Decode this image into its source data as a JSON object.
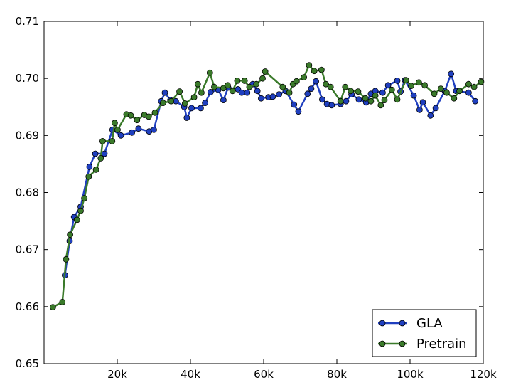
{
  "chart_data": {
    "type": "line",
    "title": "",
    "xlabel": "",
    "ylabel": "",
    "xlim": [
      0,
      120000
    ],
    "ylim": [
      0.65,
      0.71
    ],
    "x_ticks": [
      20000,
      40000,
      60000,
      80000,
      100000,
      120000
    ],
    "x_tick_labels": [
      "20k",
      "40k",
      "60k",
      "80k",
      "100k",
      "120k"
    ],
    "y_ticks": [
      0.65,
      0.66,
      0.67,
      0.68,
      0.69,
      0.7,
      0.71
    ],
    "y_tick_labels": [
      "0.65",
      "0.66",
      "0.67",
      "0.68",
      "0.69",
      "0.70",
      "0.71"
    ],
    "grid": false,
    "legend_position": "bottom-right",
    "series": [
      {
        "name": "GLA",
        "color": "#1f3fbf",
        "points": [
          [
            5700,
            0.6655
          ],
          [
            7000,
            0.6715
          ],
          [
            8200,
            0.6757
          ],
          [
            10000,
            0.6775
          ],
          [
            12400,
            0.6845
          ],
          [
            14000,
            0.6868
          ],
          [
            16500,
            0.6868
          ],
          [
            18700,
            0.691
          ],
          [
            21000,
            0.69
          ],
          [
            24000,
            0.6905
          ],
          [
            25800,
            0.6912
          ],
          [
            28700,
            0.6907
          ],
          [
            30000,
            0.691
          ],
          [
            32000,
            0.696
          ],
          [
            33000,
            0.6975
          ],
          [
            34500,
            0.6962
          ],
          [
            36000,
            0.696
          ],
          [
            38300,
            0.695
          ],
          [
            39000,
            0.6931
          ],
          [
            40300,
            0.6948
          ],
          [
            42800,
            0.6948
          ],
          [
            44000,
            0.6957
          ],
          [
            45500,
            0.6976
          ],
          [
            47600,
            0.698
          ],
          [
            49000,
            0.6962
          ],
          [
            50300,
            0.6984
          ],
          [
            53000,
            0.6981
          ],
          [
            54000,
            0.6975
          ],
          [
            55500,
            0.6975
          ],
          [
            57000,
            0.699
          ],
          [
            58300,
            0.6978
          ],
          [
            59300,
            0.6965
          ],
          [
            61300,
            0.6967
          ],
          [
            62500,
            0.6968
          ],
          [
            64200,
            0.6972
          ],
          [
            66000,
            0.6978
          ],
          [
            68300,
            0.6954
          ],
          [
            69500,
            0.6942
          ],
          [
            72000,
            0.6973
          ],
          [
            73000,
            0.6982
          ],
          [
            74300,
            0.6995
          ],
          [
            76000,
            0.6963
          ],
          [
            77300,
            0.6955
          ],
          [
            78600,
            0.6953
          ],
          [
            81000,
            0.6955
          ],
          [
            82500,
            0.696
          ],
          [
            84000,
            0.6972
          ],
          [
            86000,
            0.6963
          ],
          [
            88000,
            0.6958
          ],
          [
            89300,
            0.6973
          ],
          [
            90500,
            0.6978
          ],
          [
            92500,
            0.6975
          ],
          [
            94000,
            0.6988
          ],
          [
            96500,
            0.6996
          ],
          [
            97400,
            0.6977
          ],
          [
            98600,
            0.6997
          ],
          [
            101000,
            0.697
          ],
          [
            102600,
            0.6945
          ],
          [
            103500,
            0.6958
          ],
          [
            105600,
            0.6935
          ],
          [
            107000,
            0.6948
          ],
          [
            109500,
            0.6978
          ],
          [
            111200,
            0.7008
          ],
          [
            112600,
            0.6978
          ],
          [
            116000,
            0.6975
          ],
          [
            117800,
            0.696
          ]
        ]
      },
      {
        "name": "Pretrain",
        "color": "#3a7a2a",
        "points": [
          [
            2400,
            0.6599
          ],
          [
            5000,
            0.6608
          ],
          [
            6000,
            0.6683
          ],
          [
            7100,
            0.6726
          ],
          [
            9000,
            0.6752
          ],
          [
            10000,
            0.6768
          ],
          [
            11000,
            0.679
          ],
          [
            12200,
            0.6828
          ],
          [
            14200,
            0.684
          ],
          [
            15500,
            0.686
          ],
          [
            16000,
            0.689
          ],
          [
            18600,
            0.689
          ],
          [
            19300,
            0.6922
          ],
          [
            20100,
            0.691
          ],
          [
            22500,
            0.6937
          ],
          [
            23700,
            0.6935
          ],
          [
            25400,
            0.6927
          ],
          [
            27400,
            0.6936
          ],
          [
            28600,
            0.6933
          ],
          [
            30300,
            0.694
          ],
          [
            32500,
            0.6957
          ],
          [
            34700,
            0.696
          ],
          [
            37000,
            0.6977
          ],
          [
            38500,
            0.6956
          ],
          [
            41000,
            0.6967
          ],
          [
            42000,
            0.699
          ],
          [
            43000,
            0.6975
          ],
          [
            45300,
            0.701
          ],
          [
            46500,
            0.6985
          ],
          [
            49000,
            0.6983
          ],
          [
            50200,
            0.6988
          ],
          [
            51500,
            0.6978
          ],
          [
            52800,
            0.6996
          ],
          [
            54800,
            0.6996
          ],
          [
            56100,
            0.6985
          ],
          [
            58000,
            0.699
          ],
          [
            59700,
            0.7
          ],
          [
            60400,
            0.7012
          ],
          [
            65200,
            0.6985
          ],
          [
            67000,
            0.6975
          ],
          [
            68000,
            0.699
          ],
          [
            69000,
            0.6995
          ],
          [
            71000,
            0.7002
          ],
          [
            72400,
            0.7023
          ],
          [
            73800,
            0.7013
          ],
          [
            75800,
            0.7015
          ],
          [
            77000,
            0.699
          ],
          [
            78300,
            0.6985
          ],
          [
            81000,
            0.696
          ],
          [
            82300,
            0.6985
          ],
          [
            83800,
            0.6978
          ],
          [
            85800,
            0.6977
          ],
          [
            87800,
            0.6965
          ],
          [
            89300,
            0.696
          ],
          [
            90500,
            0.697
          ],
          [
            92000,
            0.6953
          ],
          [
            93000,
            0.6962
          ],
          [
            95000,
            0.698
          ],
          [
            96500,
            0.6963
          ],
          [
            98900,
            0.6997
          ],
          [
            100300,
            0.6987
          ],
          [
            102400,
            0.6993
          ],
          [
            104000,
            0.6988
          ],
          [
            106600,
            0.6973
          ],
          [
            108400,
            0.6982
          ],
          [
            110000,
            0.6975
          ],
          [
            112000,
            0.6965
          ],
          [
            113500,
            0.6978
          ],
          [
            116000,
            0.699
          ],
          [
            117500,
            0.6985
          ],
          [
            119400,
            0.6994
          ]
        ]
      }
    ]
  }
}
